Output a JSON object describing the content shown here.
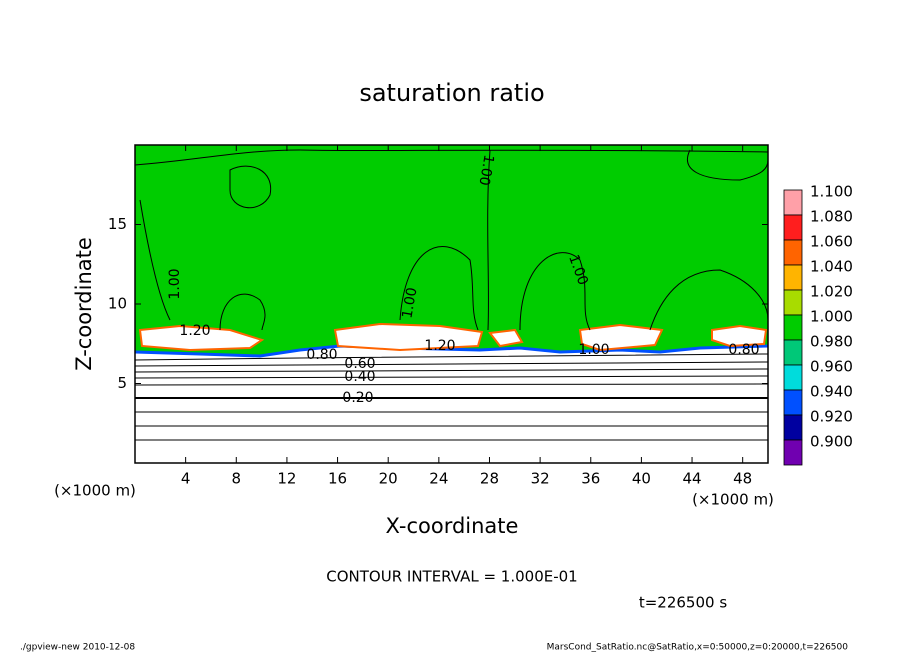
{
  "chart_data": {
    "type": "contour",
    "title": "saturation ratio",
    "x_label": "X-coordinate",
    "y_label": "Z-coordinate",
    "x_unit": "(×1000 m)",
    "y_unit": "(×1000 m)",
    "xlim": [
      0,
      50
    ],
    "ylim": [
      0,
      20
    ],
    "xticks": [
      4,
      8,
      12,
      16,
      20,
      24,
      28,
      32,
      36,
      40,
      44,
      48
    ],
    "yticks": [
      5,
      10,
      15
    ],
    "colorbar": {
      "levels": [
        {
          "value": 1.1,
          "label": "1.100"
        },
        {
          "value": 1.08,
          "label": "1.080"
        },
        {
          "value": 1.06,
          "label": "1.060"
        },
        {
          "value": 1.04,
          "label": "1.040"
        },
        {
          "value": 1.02,
          "label": "1.020"
        },
        {
          "value": 1,
          "label": "1.000"
        },
        {
          "value": 0.98,
          "label": "0.980"
        },
        {
          "value": 0.96,
          "label": "0.960"
        },
        {
          "value": 0.94,
          "label": "0.940"
        },
        {
          "value": 0.92,
          "label": "0.920"
        },
        {
          "value": 0.9,
          "label": "0.900"
        }
      ],
      "colors": [
        "#ffa0a8",
        "#ff1e1e",
        "#ff6400",
        "#ffb400",
        "#a8dc00",
        "#00cc00",
        "#00c878",
        "#00dcdc",
        "#0050ff",
        "#0000a0",
        "#7000b0"
      ]
    },
    "contour_labels": [
      {
        "value": 1.2,
        "label": "1.20"
      },
      {
        "value": 0.8,
        "label": "0.80"
      },
      {
        "value": 0.6,
        "label": "0.60"
      },
      {
        "value": 0.4,
        "label": "0.40"
      },
      {
        "value": 0.2,
        "label": "0.20"
      },
      {
        "value": 1.2,
        "label": "1.20"
      },
      {
        "value": 1,
        "label": "1.00"
      },
      {
        "value": 0.8,
        "label": "0.80"
      },
      {
        "value": 1,
        "label": "1.00"
      },
      {
        "value": 1,
        "label": "1.00"
      },
      {
        "value": 1,
        "label": "1.00"
      },
      {
        "value": 1,
        "label": "1.00"
      }
    ],
    "contour_interval_text": "CONTOUR INTERVAL = 1.000E-01",
    "time_text": "t=226500 s",
    "footer_left": "./gpview-new  2010-12-08",
    "footer_right": "MarsCond_SatRatio.nc@SatRatio,x=0:50000,z=0:20000,t=226500"
  }
}
